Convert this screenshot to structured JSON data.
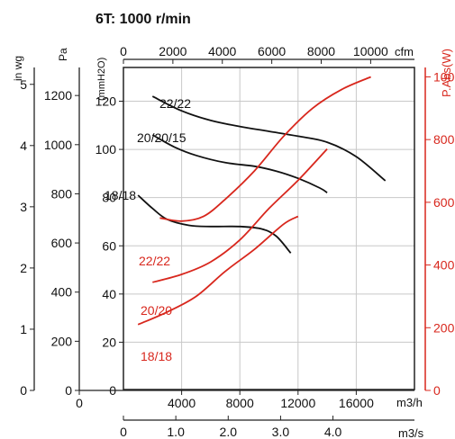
{
  "chart_data": {
    "type": "line",
    "title": "6T: 1000 r/min",
    "grid": true,
    "x": {
      "label": "m3/h",
      "ticks": [
        "0",
        "4000",
        "8000",
        "12000",
        "16000"
      ],
      "range": [
        0,
        20000
      ]
    },
    "x_flow_ms": {
      "label": "m3/s",
      "ticks": [
        "0",
        "1.0",
        "2.0",
        "3.0",
        "4.0"
      ]
    },
    "x_cfm": {
      "label": "cfm",
      "ticks": [
        "0",
        "2000",
        "4000",
        "6000",
        "8000",
        "10000"
      ]
    },
    "y_pressure_mmh2o": {
      "label": "(mmH2O)",
      "ticks": [
        "0",
        "20",
        "40",
        "60",
        "80",
        "100",
        "120"
      ],
      "range": [
        0,
        134
      ]
    },
    "y_pa": {
      "label": "Pa",
      "ticks": [
        "0",
        "200",
        "400",
        "600",
        "800",
        "1000",
        "1200"
      ]
    },
    "y_in_wg": {
      "label": "in  wg",
      "ticks": [
        "0",
        "1",
        "2",
        "3",
        "4",
        "5"
      ]
    },
    "y_power": {
      "label": "P.Abs(W)",
      "ticks": [
        "0",
        "200",
        "400",
        "600",
        "800",
        "1000"
      ],
      "range": [
        0,
        1030
      ]
    },
    "pressure_series": [
      {
        "name": "22/22",
        "color": "#111111",
        "points": [
          [
            2000,
            122
          ],
          [
            4000,
            116
          ],
          [
            6000,
            112
          ],
          [
            8000,
            109.5
          ],
          [
            10000,
            107.5
          ],
          [
            12000,
            105.5
          ],
          [
            14000,
            103
          ],
          [
            16000,
            97
          ],
          [
            18000,
            87
          ]
        ]
      },
      {
        "name": "20/20/15",
        "color": "#111111",
        "points": [
          [
            2000,
            106
          ],
          [
            3500,
            101
          ],
          [
            5000,
            97.5
          ],
          [
            7000,
            94.5
          ],
          [
            9000,
            93
          ],
          [
            10500,
            91
          ],
          [
            12000,
            88
          ],
          [
            13500,
            84
          ],
          [
            14000,
            82
          ]
        ]
      },
      {
        "name": "18/18",
        "color": "#111111",
        "points": [
          [
            1000,
            81
          ],
          [
            2000,
            75.5
          ],
          [
            3000,
            71
          ],
          [
            4500,
            68.5
          ],
          [
            6000,
            68
          ],
          [
            8000,
            68
          ],
          [
            9500,
            67
          ],
          [
            10500,
            64
          ],
          [
            11500,
            57
          ]
        ]
      }
    ],
    "power_series": [
      {
        "name": "22/22",
        "color": "#d8271d",
        "points": [
          [
            2500,
            550
          ],
          [
            4000,
            540
          ],
          [
            5500,
            555
          ],
          [
            7000,
            610
          ],
          [
            9000,
            700
          ],
          [
            11000,
            810
          ],
          [
            13000,
            900
          ],
          [
            15000,
            960
          ],
          [
            17000,
            1000
          ]
        ]
      },
      {
        "name": "20/20",
        "color": "#d8271d",
        "points": [
          [
            2000,
            345
          ],
          [
            4000,
            370
          ],
          [
            6000,
            410
          ],
          [
            8000,
            480
          ],
          [
            10000,
            580
          ],
          [
            12000,
            670
          ],
          [
            14000,
            770
          ]
        ]
      },
      {
        "name": "18/18",
        "color": "#d8271d",
        "points": [
          [
            1000,
            210
          ],
          [
            3000,
            250
          ],
          [
            5000,
            300
          ],
          [
            7000,
            380
          ],
          [
            9000,
            450
          ],
          [
            11000,
            530
          ],
          [
            12000,
            555
          ]
        ]
      }
    ]
  }
}
